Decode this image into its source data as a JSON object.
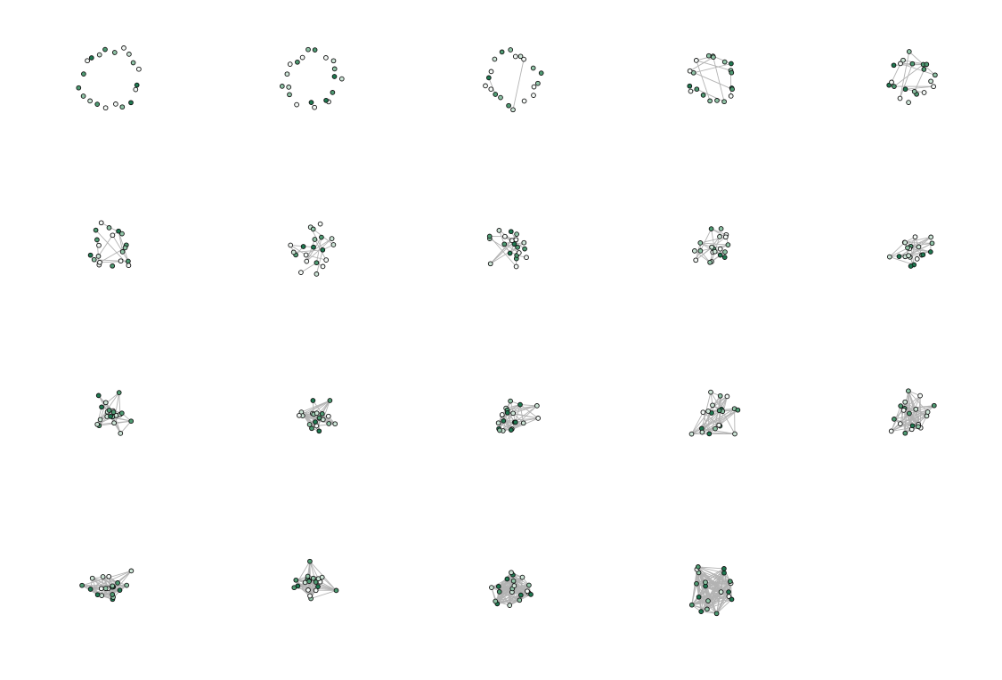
{
  "figure": {
    "panels": 19,
    "columns": 5,
    "rows": 4,
    "nodes_per_panel": 20,
    "edge_density": [
      0,
      0,
      0.02,
      0.05,
      0.07,
      0.09,
      0.11,
      0.13,
      0.16,
      0.19,
      0.24,
      0.28,
      0.33,
      0.38,
      0.43,
      0.5,
      0.58,
      0.68,
      0.82
    ]
  },
  "colors": {
    "background": "#ffffff",
    "edge": "#b3b3b3",
    "node_outline": "#111111",
    "node_fills": [
      "#1e7850",
      "#4e9a72",
      "#8fc3a6",
      "#cce4d6",
      "#f4f9f6"
    ]
  }
}
